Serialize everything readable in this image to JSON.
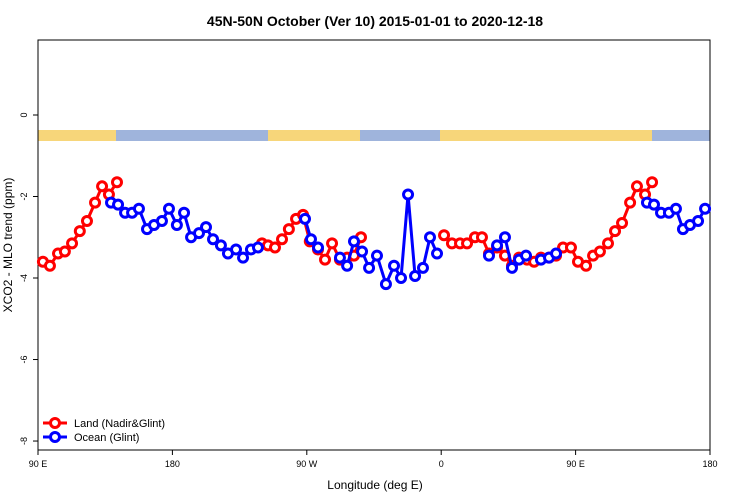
{
  "chart_data": {
    "type": "line",
    "title": "45N-50N October (Ver 10)   2015-01-01 to 2020-12-18",
    "x_label": "Longitude (deg E)",
    "y_label": "XCO2 - MLO trend (ppm)",
    "xlim": [
      90,
      540
    ],
    "ylim": [
      -8.22,
      1.84
    ],
    "xticks": [
      {
        "value": 90,
        "label": "90 E"
      },
      180,
      {
        "value": 270,
        "label": "90 W"
      },
      {
        "value": 360,
        "label": "0"
      },
      {
        "value": 450,
        "label": "90 E"
      },
      {
        "value": 540,
        "label": "180"
      }
    ],
    "yticks": [
      0,
      -2,
      -4,
      -6,
      -8
    ],
    "legend": "bottom-left",
    "series": [
      {
        "name": "Land (Nadir&Glint)",
        "color": "#ff0000",
        "x": [
          93.3,
          98,
          103.4,
          108,
          112.8,
          118,
          122.8,
          128.2,
          132.9,
          137.5,
          142.9,
          null,
          240,
          244,
          248.7,
          253.4,
          258,
          262.8,
          267.5,
          272,
          277.5,
          282.2,
          286.9,
          292.2,
          297,
          301.6,
          306.3,
          null,
          361.9,
          367.2,
          372.6,
          377.3,
          382.6,
          387.3,
          392,
          397.4,
          402.7,
          407.4,
          412.1,
          417.5,
          422.2,
          426.8,
          432.2,
          436.9,
          441.6,
          446.9,
          451.6,
          457,
          461.7,
          466.3,
          471.7,
          476.4,
          481.1,
          486.5,
          491.1,
          496.5,
          501.2
        ],
        "values": [
          -3.6,
          -3.7,
          -3.4,
          -3.35,
          -3.15,
          -2.85,
          -2.6,
          -2.15,
          -1.75,
          -1.95,
          -1.65,
          null,
          -3.15,
          -3.2,
          -3.25,
          -3.05,
          -2.8,
          -2.55,
          -2.45,
          -3.1,
          -3.3,
          -3.55,
          -3.15,
          -3.55,
          -3.5,
          -3.45,
          -3.0,
          null,
          -2.95,
          -3.15,
          -3.15,
          -3.15,
          -3.0,
          -3.0,
          -3.4,
          -3.25,
          -3.45,
          -3.7,
          -3.5,
          -3.55,
          -3.6,
          -3.5,
          -3.5,
          -3.45,
          -3.25,
          -3.25,
          -3.6,
          -3.7,
          -3.45,
          -3.35,
          -3.15,
          -2.85,
          -2.65,
          -2.15,
          -1.75,
          -1.95,
          -1.65
        ]
      },
      {
        "name": "Ocean (Glint)",
        "color": "#0000ff",
        "x": [
          138.9,
          143.6,
          148.3,
          153,
          157.6,
          163,
          167.7,
          173,
          177.7,
          183,
          187.8,
          192.5,
          197.8,
          202.5,
          207.2,
          212.5,
          217.2,
          222.6,
          227.3,
          232.6,
          237.3,
          null,
          268.8,
          272.8,
          277.5,
          null,
          292.2,
          297,
          301.6,
          307,
          311.7,
          317,
          323,
          328.4,
          333.1,
          337.8,
          342.5,
          347.8,
          352.5,
          357.2,
          null,
          392,
          397.4,
          402.7,
          407.4,
          412.1,
          416.8,
          null,
          426.8,
          432.2,
          436.9,
          null,
          497.8,
          502.5,
          507.2,
          512.5,
          517.2,
          521.9,
          526.6,
          532,
          536.7
        ],
        "values": [
          -2.15,
          -2.2,
          -2.4,
          -2.4,
          -2.3,
          -2.8,
          -2.7,
          -2.6,
          -2.3,
          -2.7,
          -2.4,
          -3.0,
          -2.9,
          -2.75,
          -3.05,
          -3.2,
          -3.4,
          -3.3,
          -3.5,
          -3.3,
          -3.25,
          null,
          -2.55,
          -3.05,
          -3.25,
          null,
          -3.5,
          -3.7,
          -3.1,
          -3.35,
          -3.75,
          -3.45,
          -4.15,
          -3.7,
          -4.0,
          -1.95,
          -3.95,
          -3.75,
          -3.0,
          -3.4,
          null,
          -3.45,
          -3.2,
          -3.0,
          -3.75,
          -3.55,
          -3.45,
          null,
          -3.55,
          -3.5,
          -3.4,
          null,
          -2.15,
          -2.2,
          -2.4,
          -2.4,
          -2.3,
          -2.8,
          -2.7,
          -2.6,
          -2.3
        ]
      }
    ]
  }
}
